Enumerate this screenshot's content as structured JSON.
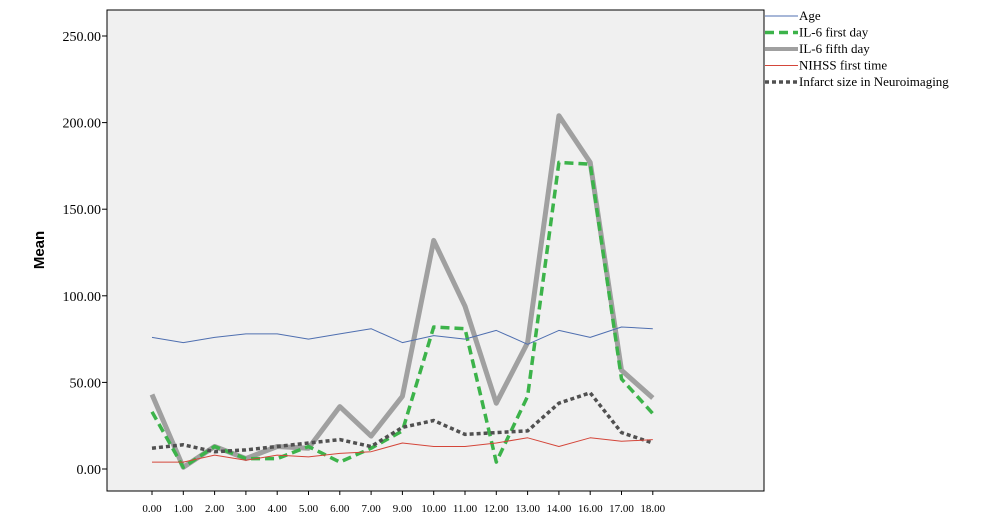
{
  "chart_data": {
    "type": "line",
    "title": "",
    "xlabel": "",
    "ylabel": "Mean",
    "categories": [
      "0.00",
      "1.00",
      "2.00",
      "3.00",
      "4.00",
      "5.00",
      "6.00",
      "7.00",
      "9.00",
      "10.00",
      "11.00",
      "12.00",
      "13.00",
      "14.00",
      "16.00",
      "17.00",
      "18.00"
    ],
    "yticks": [
      "0.00",
      "50.00",
      "100.00",
      "150.00",
      "200.00",
      "250.00"
    ],
    "ylim": [
      0,
      260
    ],
    "grid": false,
    "legend_position": "right",
    "series": [
      {
        "name": "Age",
        "color": "#4f6fb0",
        "style": "solid-thin",
        "values": [
          76,
          73,
          76,
          78,
          78,
          75,
          78,
          81,
          73,
          77,
          75,
          80,
          72,
          80,
          76,
          82,
          81
        ]
      },
      {
        "name": "IL-6 first day",
        "color": "#3cb34a",
        "style": "dashed-thick",
        "values": [
          33,
          1,
          13,
          6,
          6,
          13,
          4,
          12,
          22,
          82,
          81,
          4,
          42,
          177,
          176,
          52,
          32
        ]
      },
      {
        "name": "IL-6 fifth day",
        "color": "#a0a0a0",
        "style": "solid-thick",
        "values": [
          43,
          1,
          13,
          6,
          13,
          12,
          36,
          19,
          42,
          132,
          94,
          38,
          73,
          204,
          177,
          57,
          41
        ]
      },
      {
        "name": "NIHSS first time",
        "color": "#d4463a",
        "style": "solid-thin",
        "values": [
          4,
          4,
          8,
          5,
          8,
          7,
          9,
          10,
          15,
          13,
          13,
          15,
          18,
          13,
          18,
          16,
          17
        ]
      },
      {
        "name": "Infarct size in Neuroimaging",
        "color": "#505050",
        "style": "dotted-thick",
        "values": [
          12,
          14,
          10,
          11,
          13,
          15,
          17,
          13,
          24,
          28,
          20,
          21,
          22,
          38,
          44,
          21,
          15
        ]
      }
    ]
  }
}
